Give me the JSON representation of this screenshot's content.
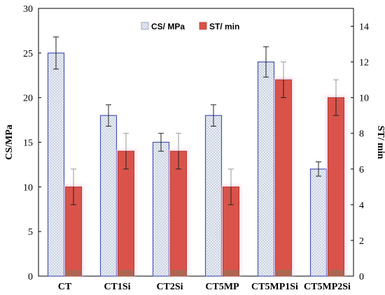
{
  "chart_data": {
    "type": "bar",
    "categories": [
      "CT",
      "CT1Si",
      "CT2Si",
      "CT5MP",
      "CT5MP1Si",
      "CT5MP2Si"
    ],
    "series": [
      {
        "name": "CS/ MPa",
        "axis": "left",
        "values": [
          25,
          18,
          15,
          18,
          24,
          12
        ],
        "errors": [
          1.8,
          1.2,
          1.0,
          1.2,
          1.7,
          0.8
        ],
        "color": "#e8eef7",
        "border": "#4a55b5",
        "pattern": "crosshatch"
      },
      {
        "name": "ST/ min",
        "axis": "right",
        "values": [
          5,
          7,
          7,
          5,
          11,
          10
        ],
        "errors": [
          1,
          1,
          1,
          1,
          1,
          1
        ],
        "color": "#d9534a",
        "border": "#b83a33"
      }
    ],
    "ylabel": "CS/MPa",
    "ylim": [
      0,
      30
    ],
    "yticks": [
      0,
      5,
      10,
      15,
      20,
      25,
      30
    ],
    "y2label": "ST/ min",
    "y2lim": [
      0,
      15
    ],
    "y2ticks": [
      0,
      2,
      4,
      6,
      8,
      10,
      12,
      14
    ],
    "legend": "top-center",
    "grid": false
  }
}
